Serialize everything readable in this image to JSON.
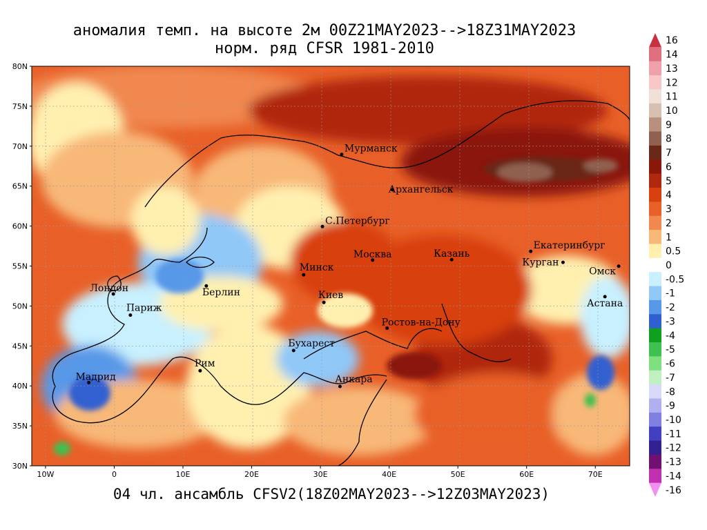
{
  "title_line1": "аномалия темп. на высоте 2м 00Z21MAY2023-->18Z31MAY2023",
  "title_line2": "норм. ряд CFSR 1981-2010",
  "footer": "04 чл. ансамбль CFSV2(18Z02MAY2023-->12Z03MAY2023)",
  "lat_labels": [
    "80N",
    "75N",
    "70N",
    "65N",
    "60N",
    "55N",
    "50N",
    "45N",
    "40N",
    "35N",
    "30N"
  ],
  "lon_labels": [
    "10W",
    "0",
    "10E",
    "20E",
    "30E",
    "40E",
    "50E",
    "60E",
    "70E"
  ],
  "colorbar": {
    "labels": [
      "16",
      "14",
      "13",
      "12",
      "11",
      "10",
      "9",
      "8",
      "7",
      "6",
      "5",
      "4",
      "3",
      "2",
      "1",
      "0.5",
      "0",
      "-0.5",
      "-1",
      "-2",
      "-3",
      "-4",
      "-5",
      "-6",
      "-7",
      "-8",
      "-9",
      "-10",
      "-11",
      "-12",
      "-13",
      "-14",
      "-16"
    ],
    "colors": [
      "#c93040",
      "#e07080",
      "#f0a0a8",
      "#f8c8c8",
      "#f0e0d8",
      "#d8c0b0",
      "#b89080",
      "#906050",
      "#6a2818",
      "#8a1808",
      "#b02810",
      "#d84010",
      "#e86028",
      "#f08850",
      "#f8b878",
      "#fff0b0",
      "#ffffff",
      "#c8f0ff",
      "#90c8f8",
      "#5898e8",
      "#3060d0",
      "#10a020",
      "#40c050",
      "#80e080",
      "#c0f0c0",
      "#d8d8f8",
      "#b0b0f0",
      "#8080e0",
      "#4040c0",
      "#302090",
      "#701070",
      "#c030b0",
      "#f090f0"
    ]
  },
  "cities": [
    {
      "name": "Мурманск",
      "lon": 33.1,
      "lat": 68.97
    },
    {
      "name": "Архангельск",
      "lon": 40.5,
      "lat": 64.54
    },
    {
      "name": "С.Петербург",
      "lon": 30.3,
      "lat": 59.94
    },
    {
      "name": "Москва",
      "lon": 37.6,
      "lat": 55.75
    },
    {
      "name": "Казань",
      "lon": 49.1,
      "lat": 55.8
    },
    {
      "name": "Екатеринбург",
      "lon": 60.6,
      "lat": 56.84
    },
    {
      "name": "Курган",
      "lon": 65.3,
      "lat": 55.45
    },
    {
      "name": "Омск",
      "lon": 73.4,
      "lat": 54.98
    },
    {
      "name": "Астана",
      "lon": 71.4,
      "lat": 51.17
    },
    {
      "name": "Минск",
      "lon": 27.56,
      "lat": 53.9
    },
    {
      "name": "Киев",
      "lon": 30.5,
      "lat": 50.45
    },
    {
      "name": "Берлин",
      "lon": 13.4,
      "lat": 52.52
    },
    {
      "name": "Лондон",
      "lon": -0.13,
      "lat": 51.5
    },
    {
      "name": "Париж",
      "lon": 2.35,
      "lat": 48.86
    },
    {
      "name": "Ростов-на-Дону",
      "lon": 39.7,
      "lat": 47.23
    },
    {
      "name": "Бухарест",
      "lon": 26.1,
      "lat": 44.43
    },
    {
      "name": "Анкара",
      "lon": 32.85,
      "lat": 39.93
    },
    {
      "name": "Рим",
      "lon": 12.5,
      "lat": 41.9
    },
    {
      "name": "Мадрид",
      "lon": -3.7,
      "lat": 40.42
    }
  ]
}
